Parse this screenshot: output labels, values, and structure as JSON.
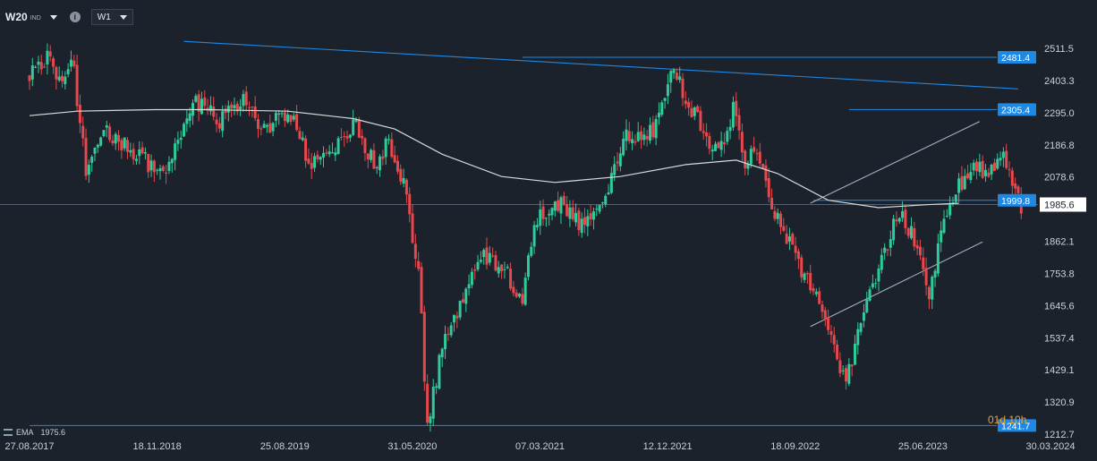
{
  "header": {
    "symbol": "W20",
    "exchange": "IND",
    "info_icon": "info-icon",
    "timeframe": "W1"
  },
  "indicator": {
    "name": "EMA",
    "value": "1975.6"
  },
  "countdown": "01d 10h",
  "colors": {
    "background": "#1b222b",
    "up": "#2ecc9a",
    "down": "#e5484d",
    "ema": "#d9d9d9",
    "levels": "#1e88e5",
    "channel": "#9fb0c0",
    "current_price": "#ffffff"
  },
  "chart_data": {
    "type": "candlestick",
    "y_axis": {
      "ticks": [
        2511.5,
        2403.3,
        2295.0,
        2186.8,
        2078.6,
        1985.6,
        1862.1,
        1753.8,
        1645.6,
        1537.4,
        1429.1,
        1320.9,
        1212.7
      ],
      "min": 1212.7,
      "max": 2511.5
    },
    "x_axis": {
      "ticks": [
        "27.08.2017",
        "18.11.2018",
        "25.08.2019",
        "31.05.2020",
        "07.03.2021",
        "12.12.2021",
        "18.09.2022",
        "25.06.2023",
        "30.03.2024"
      ],
      "start": "2017-08-27",
      "end": "2024-03-30"
    },
    "current_price": {
      "value": 1985.6,
      "label": "1985.6"
    },
    "horizontal_levels": [
      {
        "value": 2481.4,
        "label": "2481.4",
        "from": "2020-11-01"
      },
      {
        "value": 2305.4,
        "label": "2305.4",
        "from": "2022-12-11"
      },
      {
        "value": 1999.8,
        "label": "1999.8",
        "from": "2022-09-18"
      },
      {
        "value": 1241.7,
        "label": "1241.7",
        "from": "2017-08-27"
      }
    ],
    "trendlines": [
      {
        "name": "descending",
        "x1": "2018-08-26",
        "y1": 2535,
        "x2": "2024-01-14",
        "y2": 2375
      },
      {
        "name": "channel-upper",
        "x1": "2022-09-11",
        "y1": 1990,
        "x2": "2023-10-15",
        "y2": 2265
      },
      {
        "name": "channel-lower",
        "x1": "2022-09-11",
        "y1": 1575,
        "x2": "2023-10-22",
        "y2": 1860
      }
    ],
    "ema_points": [
      [
        "2017-08-27",
        2285
      ],
      [
        "2017-12-17",
        2300
      ],
      [
        "2018-06-17",
        2305
      ],
      [
        "2018-10-21",
        2305
      ],
      [
        "2019-04-28",
        2300
      ],
      [
        "2019-09-29",
        2275
      ],
      [
        "2020-01-05",
        2240
      ],
      [
        "2020-04-26",
        2155
      ],
      [
        "2020-09-13",
        2080
      ],
      [
        "2021-01-17",
        2060
      ],
      [
        "2021-06-20",
        2080
      ],
      [
        "2021-11-21",
        2120
      ],
      [
        "2022-03-20",
        2135
      ],
      [
        "2022-06-26",
        2090
      ],
      [
        "2022-10-23",
        2000
      ],
      [
        "2023-02-19",
        1975
      ],
      [
        "2023-06-11",
        1985
      ],
      [
        "2023-08-27",
        1990
      ]
    ],
    "price_path": [
      [
        "2017-08-27",
        2420
      ],
      [
        "2017-10-08",
        2480
      ],
      [
        "2017-11-12",
        2390
      ],
      [
        "2017-12-03",
        2500
      ],
      [
        "2018-01-07",
        2110
      ],
      [
        "2018-02-25",
        2230
      ],
      [
        "2018-05-06",
        2160
      ],
      [
        "2018-07-08",
        2080
      ],
      [
        "2018-09-16",
        2340
      ],
      [
        "2018-11-18",
        2270
      ],
      [
        "2019-01-13",
        2340
      ],
      [
        "2019-03-03",
        2230
      ],
      [
        "2019-04-07",
        2280
      ],
      [
        "2019-05-19",
        2260
      ],
      [
        "2019-06-16",
        2110
      ],
      [
        "2019-08-18",
        2170
      ],
      [
        "2019-09-29",
        2260
      ],
      [
        "2019-11-17",
        2120
      ],
      [
        "2019-12-22",
        2200
      ],
      [
        "2020-01-26",
        2060
      ],
      [
        "2020-03-01",
        1760
      ],
      [
        "2020-03-22",
        1248
      ],
      [
        "2020-04-26",
        1500
      ],
      [
        "2020-06-14",
        1680
      ],
      [
        "2020-08-02",
        1820
      ],
      [
        "2020-09-20",
        1765
      ],
      [
        "2020-11-01",
        1660
      ],
      [
        "2020-11-29",
        1940
      ],
      [
        "2021-01-31",
        1985
      ],
      [
        "2021-03-14",
        1920
      ],
      [
        "2021-05-16",
        2020
      ],
      [
        "2021-06-27",
        2220
      ],
      [
        "2021-08-22",
        2210
      ],
      [
        "2021-09-19",
        2270
      ],
      [
        "2021-10-24",
        2440
      ],
      [
        "2021-11-28",
        2320
      ],
      [
        "2022-01-16",
        2200
      ],
      [
        "2022-02-20",
        2180
      ],
      [
        "2022-03-13",
        2320
      ],
      [
        "2022-04-10",
        2130
      ],
      [
        "2022-05-08",
        2160
      ],
      [
        "2022-06-12",
        1960
      ],
      [
        "2022-07-10",
        1900
      ],
      [
        "2022-08-21",
        1760
      ],
      [
        "2022-09-25",
        1690
      ],
      [
        "2022-10-30",
        1520
      ],
      [
        "2022-12-04",
        1380
      ],
      [
        "2023-01-15",
        1620
      ],
      [
        "2023-02-26",
        1810
      ],
      [
        "2023-04-09",
        1960
      ],
      [
        "2023-05-14",
        1870
      ],
      [
        "2023-06-18",
        1680
      ],
      [
        "2023-07-23",
        1930
      ],
      [
        "2023-08-27",
        2050
      ],
      [
        "2023-10-01",
        2120
      ],
      [
        "2023-11-05",
        2080
      ],
      [
        "2023-12-10",
        2160
      ],
      [
        "2024-01-14",
        2000
      ],
      [
        "2024-01-21",
        1985
      ]
    ]
  }
}
